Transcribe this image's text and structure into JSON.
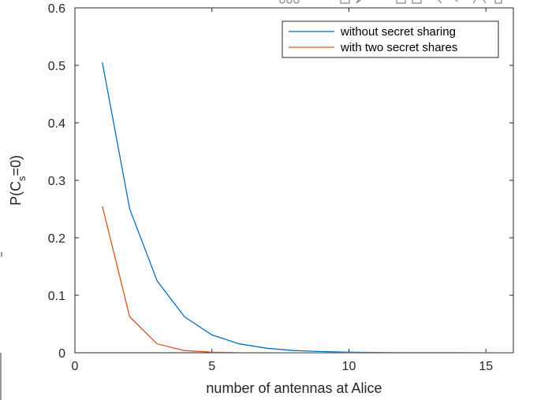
{
  "toolbar": {
    "icons": [
      "toolbar-dots-icon",
      "save-icon",
      "brush-icon",
      "zoom-in-icon",
      "zoom-out-icon",
      "pan-icon",
      "home-icon"
    ]
  },
  "chart_data": {
    "type": "line",
    "title": "",
    "xlabel": "number of antennas at Alice",
    "ylabel_main": "P(C",
    "ylabel_sub": "s",
    "ylabel_tail": "=0)",
    "xlim": [
      0,
      16
    ],
    "ylim": [
      0,
      0.6
    ],
    "xticks": [
      0,
      5,
      10,
      15
    ],
    "yticks": [
      0,
      0.1,
      0.2,
      0.3,
      0.4,
      0.5,
      0.6
    ],
    "xtick_labels": [
      "0",
      "5",
      "10",
      "15"
    ],
    "ytick_labels": [
      "0",
      "0.1",
      "0.2",
      "0.3",
      "0.4",
      "0.5",
      "0.6"
    ],
    "grid": false,
    "legend_position": "top-right",
    "series": [
      {
        "name": "without secret sharing",
        "color": "#0072BD",
        "x": [
          1,
          2,
          3,
          4,
          5,
          6,
          7,
          8,
          9,
          10,
          11,
          12,
          13,
          14,
          15,
          16
        ],
        "y": [
          0.505,
          0.25,
          0.125,
          0.0625,
          0.031,
          0.0155,
          0.0078,
          0.0039,
          0.002,
          0.001,
          0.0005,
          0.0002,
          0.0001,
          0.0001,
          0.0,
          0.0
        ]
      },
      {
        "name": "with two secret shares",
        "color": "#D95319",
        "x": [
          1,
          2,
          3,
          4,
          5,
          6,
          7,
          8,
          9,
          10,
          11,
          12,
          13,
          14,
          15,
          16
        ],
        "y": [
          0.255,
          0.0625,
          0.0155,
          0.0039,
          0.001,
          0.0002,
          0.0001,
          0.0,
          0.0,
          0.0,
          0.0,
          0.0,
          0.0,
          0.0,
          0.0,
          0.0
        ]
      }
    ]
  }
}
